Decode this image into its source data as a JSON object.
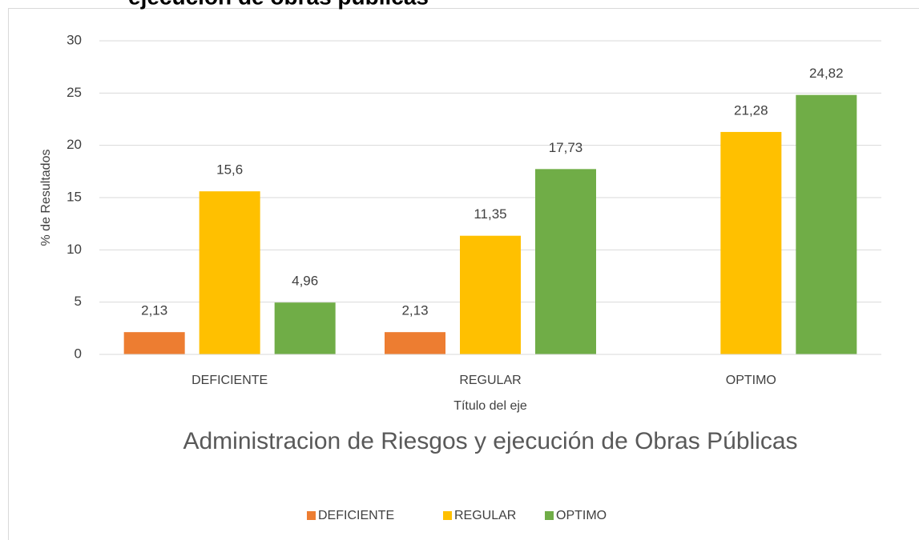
{
  "chart_data": {
    "type": "bar",
    "header": "ejecución de obras públicas",
    "title": "Administracion de Riesgos y ejecución de Obras Públicas",
    "x_label": "Título del eje",
    "y_label": "% de Resultados",
    "categories": [
      "DEFICIENTE",
      "REGULAR",
      "OPTIMO"
    ],
    "series": [
      {
        "name": "DEFICIENTE",
        "color": "#ED7D31",
        "values": [
          2.13,
          2.13,
          null
        ],
        "value_labels": [
          "2,13",
          "2,13",
          null
        ]
      },
      {
        "name": "REGULAR",
        "color": "#FFC000",
        "values": [
          15.6,
          11.35,
          21.28
        ],
        "value_labels": [
          "15,6",
          "11,35",
          "21,28"
        ]
      },
      {
        "name": "OPTIMO",
        "color": "#70AD47",
        "values": [
          4.96,
          17.73,
          24.82
        ],
        "value_labels": [
          "4,96",
          "17,73",
          "24,82"
        ]
      }
    ],
    "ylim": [
      0,
      30
    ],
    "yticks": [
      0,
      5,
      10,
      15,
      20,
      25,
      30
    ],
    "grid": true,
    "legend": "bottom"
  }
}
